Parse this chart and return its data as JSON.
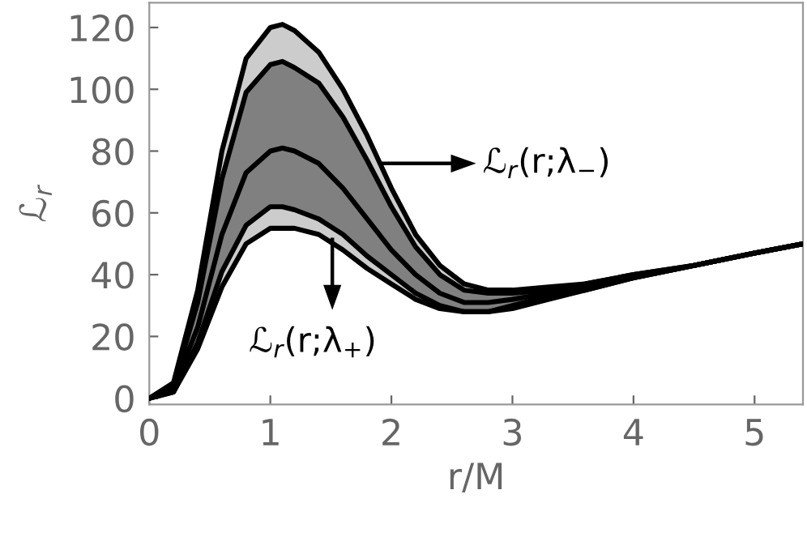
{
  "chart_data": {
    "type": "line",
    "xlabel": "r/M",
    "ylabel": "ℒ$_{r}$",
    "x": [
      0,
      0.2,
      0.4,
      0.6,
      0.8,
      1.0,
      1.1,
      1.2,
      1.4,
      1.6,
      1.8,
      2.0,
      2.2,
      2.4,
      2.6,
      2.8,
      3.0,
      3.3,
      3.6,
      4.0,
      4.5,
      5.0,
      5.4
    ],
    "series": [
      {
        "color": "#000000",
        "values": [
          0,
          5,
          35,
          80,
          110,
          120,
          121,
          119,
          112,
          100,
          85,
          68,
          53,
          43,
          37,
          35,
          35,
          36,
          37,
          40,
          43,
          47,
          50
        ]
      },
      {
        "color": "#000000",
        "values": [
          0,
          4,
          31,
          71,
          99,
          108,
          109,
          107,
          102,
          91,
          77,
          62,
          49,
          40,
          35,
          34,
          34,
          35,
          37,
          40,
          43,
          47,
          50
        ]
      },
      {
        "color": "#000000",
        "values": [
          0,
          3,
          23,
          53,
          73,
          80,
          81,
          80,
          76,
          68,
          58,
          48,
          40,
          34,
          31,
          31,
          32,
          34,
          36,
          39,
          43,
          47,
          50
        ]
      },
      {
        "color": "#000000",
        "values": [
          0,
          2,
          18,
          41,
          56,
          62,
          62,
          61,
          58,
          53,
          46,
          40,
          34,
          30,
          28,
          28,
          30,
          33,
          35,
          39,
          43,
          47,
          50
        ]
      },
      {
        "color": "#000000",
        "values": [
          0,
          2,
          16,
          36,
          50,
          55,
          55,
          55,
          53,
          48,
          42,
          37,
          32,
          29,
          28,
          28,
          29,
          32,
          35,
          39,
          43,
          47,
          50
        ]
      }
    ],
    "annotations": [
      "ℒ$_{r}$(r;λ$_{−}$)",
      "ℒ$_{r}$(r;λ$_{+}$)"
    ],
    "xlim": [
      0,
      5.4
    ],
    "ylim": [
      -2,
      128
    ],
    "xticks": [
      0,
      1,
      2,
      3,
      4,
      5
    ],
    "yticks": [
      0,
      20,
      40,
      60,
      80,
      100,
      120
    ],
    "grid": false,
    "legend": false,
    "marker": "none",
    "line_style": "solid"
  }
}
